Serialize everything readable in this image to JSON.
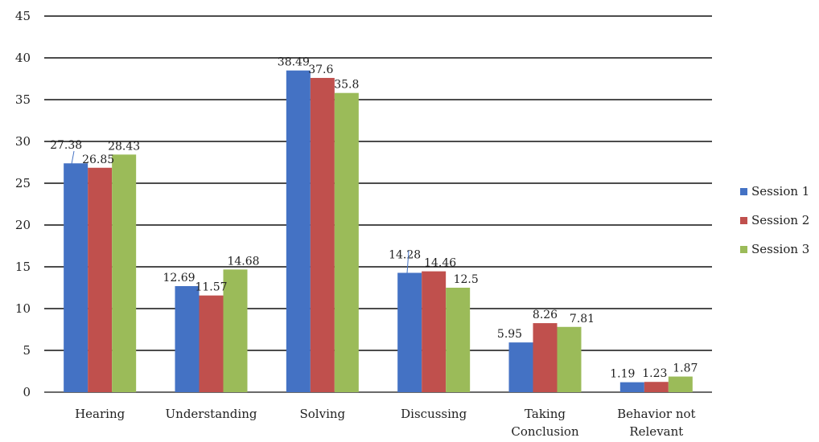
{
  "chart_data": {
    "type": "bar",
    "title": "",
    "xlabel": "",
    "ylabel": "",
    "ylim": [
      0,
      45
    ],
    "y_ticks": [
      0,
      5,
      10,
      15,
      20,
      25,
      30,
      35,
      40,
      45
    ],
    "grid": true,
    "legend_position": "right",
    "categories": [
      [
        "Hearing"
      ],
      [
        "Understanding"
      ],
      [
        "Solving"
      ],
      [
        "Discussing"
      ],
      [
        "Taking",
        "Conclusion"
      ],
      [
        "Behavior not",
        "Relevant"
      ]
    ],
    "series": [
      {
        "name": "Session 1",
        "color": "#4472C4",
        "values": [
          27.38,
          12.69,
          38.49,
          14.28,
          5.95,
          1.19
        ],
        "labels": [
          "27.38",
          "12.69",
          "38.49",
          "14.28",
          "5.95",
          "1.19"
        ]
      },
      {
        "name": "Session 2",
        "color": "#C0504D",
        "values": [
          26.85,
          11.57,
          37.6,
          14.46,
          8.26,
          1.23
        ],
        "labels": [
          "26.85",
          "11.57",
          "37.6",
          "14.46",
          "8.26",
          "1.23"
        ]
      },
      {
        "name": "Session 3",
        "color": "#9BBB59",
        "values": [
          28.43,
          14.68,
          35.8,
          12.5,
          7.81,
          1.87
        ],
        "labels": [
          "28.43",
          "14.68",
          "35.8",
          "12.5",
          "7.81",
          "1.87"
        ]
      }
    ]
  }
}
